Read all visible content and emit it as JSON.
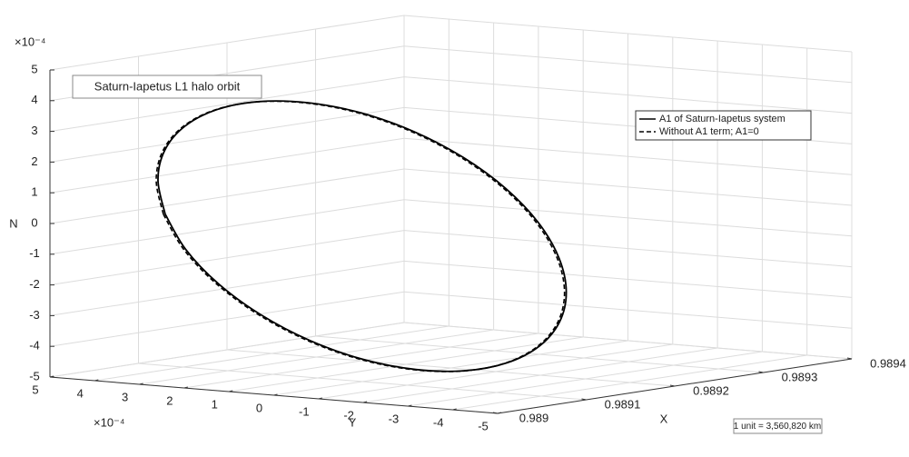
{
  "chart_data": {
    "type": "line3d",
    "annotation": "Saturn-Iapetus L1 halo orbit",
    "note": "1 unit = 3,560,820 km",
    "xlabel": "X",
    "ylabel": "Y",
    "zlabel": "N",
    "y_multiplier": "×10⁻⁴",
    "z_multiplier": "×10⁻⁴",
    "xlim": [
      0.989,
      0.9894
    ],
    "xticks": [
      0.989,
      0.9891,
      0.9892,
      0.9893,
      0.9894
    ],
    "ylim": [
      -5,
      5
    ],
    "yticks": [
      5,
      4,
      3,
      2,
      1,
      0,
      -1,
      -2,
      -3,
      -4,
      -5
    ],
    "zlim": [
      -5,
      5
    ],
    "zticks": [
      -5,
      -4,
      -3,
      -2,
      -1,
      0,
      1,
      2,
      3,
      4,
      5
    ],
    "grid": true,
    "legend": "upper right",
    "series": [
      {
        "name": "A1 of Saturn-Iapetus system",
        "color": "#000000",
        "line_style": "solid",
        "x": [
          0.98912,
          0.98912,
          0.98912,
          0.98912,
          0.98912,
          0.98912,
          0.98912,
          0.98912,
          0.98912,
          0.98912,
          0.98912,
          0.98912,
          0.98912,
          0.98912,
          0.98912,
          0.98912,
          0.98912,
          0.98912,
          0.98912,
          0.98912,
          0.98912,
          0.98912,
          0.98912,
          0.98912,
          0.98912
        ],
        "y": [
          4.8,
          4.96,
          4.81,
          4.36,
          3.64,
          2.7,
          1.6,
          0.42,
          -0.76,
          -1.86,
          -2.81,
          -3.54,
          -4.0,
          -4.16,
          -4.01,
          -3.56,
          -2.84,
          -1.9,
          -0.8,
          0.38,
          1.56,
          2.66,
          3.61,
          4.34,
          4.8
        ],
        "values": [
          -0.2,
          0.88,
          1.87,
          2.71,
          3.34,
          3.71,
          3.8,
          3.61,
          3.14,
          2.43,
          1.53,
          0.5,
          -0.6,
          -1.68,
          -2.67,
          -3.51,
          -4.14,
          -4.51,
          -4.6,
          -4.41,
          -3.94,
          -3.23,
          -2.33,
          -1.3,
          -0.2
        ]
      },
      {
        "name": "Without A1 term; A1=0",
        "color": "#000000",
        "line_style": "dashed",
        "x": [
          0.989118,
          0.989118,
          0.989118,
          0.989118,
          0.989118,
          0.989118,
          0.989118,
          0.989118,
          0.989118,
          0.989118,
          0.989118,
          0.989118,
          0.989118,
          0.989118,
          0.989118,
          0.989118,
          0.989118,
          0.989118,
          0.989118,
          0.989118,
          0.989118,
          0.989118,
          0.989118,
          0.989118,
          0.989118
        ],
        "y": [
          4.8,
          4.96,
          4.81,
          4.36,
          3.64,
          2.7,
          1.6,
          0.42,
          -0.76,
          -1.86,
          -2.81,
          -3.54,
          -4.0,
          -4.16,
          -4.01,
          -3.56,
          -2.84,
          -1.9,
          -0.8,
          0.38,
          1.56,
          2.66,
          3.61,
          4.34,
          4.8
        ],
        "values": [
          -0.2,
          0.88,
          1.87,
          2.71,
          3.34,
          3.71,
          3.8,
          3.61,
          3.14,
          2.43,
          1.53,
          0.5,
          -0.6,
          -1.68,
          -2.67,
          -3.51,
          -4.14,
          -4.51,
          -4.6,
          -4.41,
          -3.94,
          -3.23,
          -2.33,
          -1.3,
          -0.2
        ]
      }
    ]
  }
}
